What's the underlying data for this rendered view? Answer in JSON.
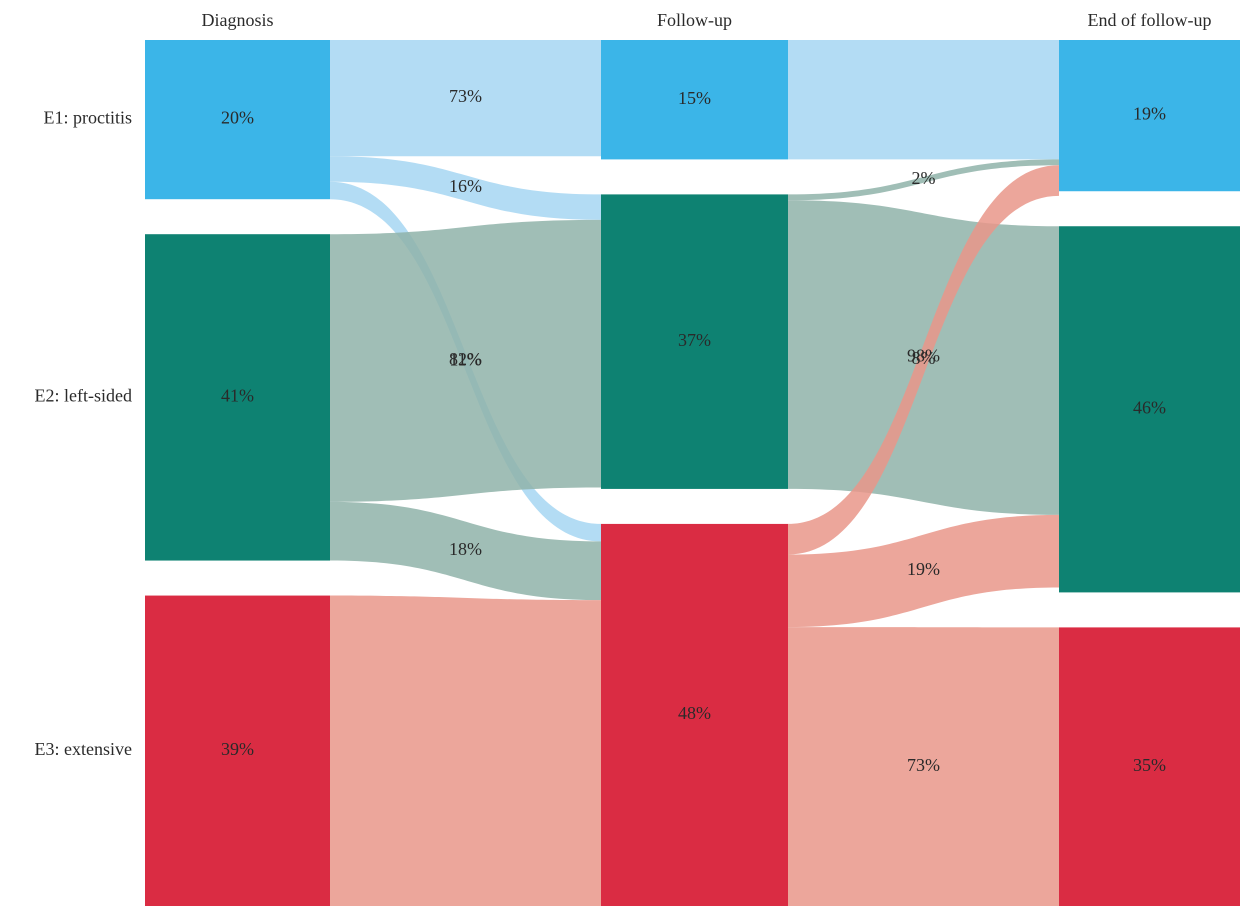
{
  "chart_data": {
    "type": "sankey",
    "stages": [
      "Diagnosis",
      "Follow-up",
      "End of follow-up"
    ],
    "categories": [
      "E1: proctitis",
      "E2: left-sided",
      "E3: extensive"
    ],
    "colors": [
      "#3bb5e8",
      "#0e8272",
      "#da2c43"
    ],
    "flow_colors": [
      "#a6d6f2",
      "#8fb3a9",
      "#e9968a"
    ],
    "nodes": [
      {
        "values": [
          20,
          41,
          39
        ],
        "value_labels": [
          "20%",
          "41%",
          "39%"
        ]
      },
      {
        "values": [
          15,
          37,
          48
        ],
        "value_labels": [
          "15%",
          "37%",
          "48%"
        ]
      },
      {
        "values": [
          19,
          46,
          35
        ],
        "value_labels": [
          "19%",
          "46%",
          "35%"
        ]
      }
    ],
    "flows": [
      {
        "source": [
          0,
          0,
          0,
          1,
          1,
          2
        ],
        "target": [
          0,
          1,
          2,
          1,
          2,
          2
        ],
        "values": [
          73,
          16,
          11,
          82,
          18,
          100
        ],
        "value_labels": [
          "73%",
          "16%",
          "11%",
          "82%",
          "18%",
          null
        ]
      },
      {
        "source": [
          0,
          1,
          1,
          2,
          2,
          2
        ],
        "target": [
          0,
          0,
          1,
          0,
          1,
          2
        ],
        "values": [
          100,
          2,
          98,
          8,
          19,
          73
        ],
        "value_labels": [
          null,
          "2%",
          "98%",
          "8%",
          "19%",
          "73%"
        ]
      }
    ]
  }
}
